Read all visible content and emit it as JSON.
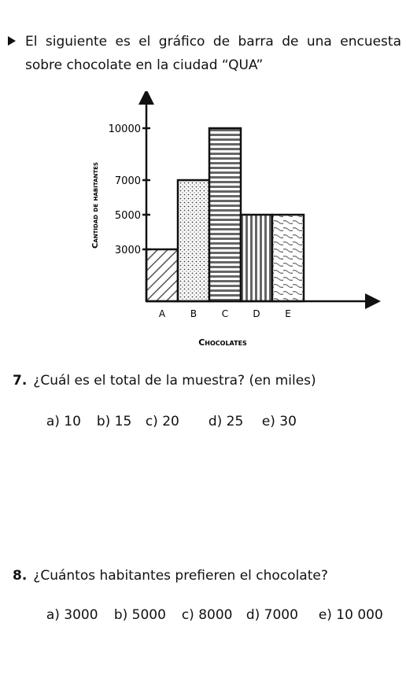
{
  "intro": "El siguiente es el gráfico de barra de una encuesta sobre chocolate en la ciudad “QUA”",
  "chart_data": {
    "type": "bar",
    "categories": [
      "A",
      "B",
      "C",
      "D",
      "E"
    ],
    "values": [
      3000,
      7000,
      10000,
      5000,
      5000
    ],
    "patterns": [
      "diagonal",
      "dots",
      "horizontal-lines",
      "vertical-lines",
      "wavy"
    ],
    "yticks": [
      "3000",
      "5000",
      "7000",
      "10000"
    ],
    "ytick_values": [
      3000,
      5000,
      7000,
      10000
    ],
    "xlabel": "Chocolates",
    "ylabel": "Cantidad de habitantes",
    "ylim": [
      0,
      12000
    ],
    "grid": false
  },
  "q7": {
    "number": "7.",
    "text": "¿Cuál es el total de la muestra? (en miles)",
    "options": [
      "a) 10",
      "b) 15",
      "c) 20",
      "d) 25",
      "e) 30"
    ]
  },
  "q8": {
    "number": "8.",
    "text": "¿Cuántos habitantes prefieren el chocolate?",
    "options": [
      "a) 3000",
      "b) 5000",
      "c) 8000",
      "d) 7000",
      "e) 10 000"
    ]
  }
}
